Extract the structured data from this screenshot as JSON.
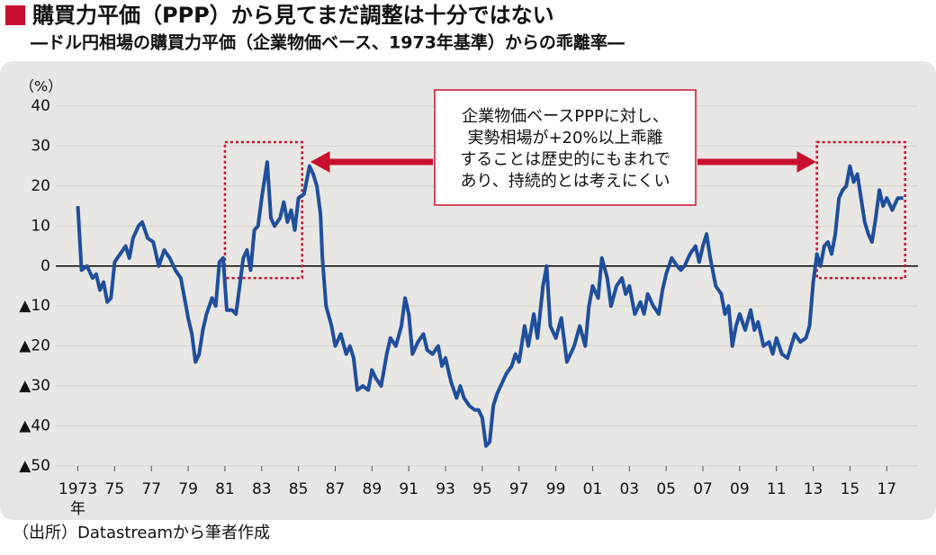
{
  "chart_data": {
    "type": "line",
    "title": "購買力平価（PPP）から見てまだ調整は十分ではない",
    "subtitle": "―ドル円相場の購買力平価（企業物価ベース、1973年基準）からの乖離率―",
    "y_unit": "（%）",
    "x_unit": "年",
    "source": "（出所）Datastreamから筆者作成",
    "annotation": [
      "企業物価ベースPPPに対し、",
      "実勢相場が+20%以上乖離",
      "することは歴史的にもまれで",
      "あり、持続的とは考えにくい"
    ],
    "highlight_ranges": [
      {
        "x": [
          1981,
          1985.2
        ],
        "y": [
          -3,
          31
        ]
      },
      {
        "x": [
          2013.2,
          2018
        ],
        "y": [
          -3,
          31
        ]
      }
    ],
    "highlight_color": "#c8102e",
    "grid": true,
    "xlim": [
      1971.8,
      2018.7
    ],
    "ylim": [
      -50,
      40
    ],
    "yticks": [
      {
        "value": -50,
        "label": "▲50"
      },
      {
        "value": -40,
        "label": "▲40"
      },
      {
        "value": -30,
        "label": "▲30"
      },
      {
        "value": -20,
        "label": "▲20"
      },
      {
        "value": -10,
        "label": "▲10"
      },
      0,
      10,
      20,
      30,
      40
    ],
    "xticks": [
      1973,
      {
        "value": 1975,
        "label": "75"
      },
      {
        "value": 1977,
        "label": "77"
      },
      {
        "value": 1979,
        "label": "79"
      },
      {
        "value": 1981,
        "label": "81"
      },
      {
        "value": 1983,
        "label": "83"
      },
      {
        "value": 1985,
        "label": "85"
      },
      {
        "value": 1987,
        "label": "87"
      },
      {
        "value": 1989,
        "label": "89"
      },
      {
        "value": 1991,
        "label": "91"
      },
      {
        "value": 1993,
        "label": "93"
      },
      {
        "value": 1995,
        "label": "95"
      },
      {
        "value": 1997,
        "label": "97"
      },
      {
        "value": 1999,
        "label": "99"
      },
      {
        "value": 2001,
        "label": "01"
      },
      {
        "value": 2003,
        "label": "03"
      },
      {
        "value": 2005,
        "label": "05"
      },
      {
        "value": 2007,
        "label": "07"
      },
      {
        "value": 2009,
        "label": "09"
      },
      {
        "value": 2011,
        "label": "11"
      },
      {
        "value": 2013,
        "label": "13"
      },
      {
        "value": 2015,
        "label": "15"
      },
      {
        "value": 2017,
        "label": "17"
      }
    ],
    "series": [
      {
        "color": "#1f4e9c",
        "x": [
          1973.0,
          1973.2,
          1973.5,
          1973.8,
          1974.0,
          1974.2,
          1974.4,
          1974.6,
          1974.8,
          1975.0,
          1975.3,
          1975.6,
          1975.8,
          1976.0,
          1976.3,
          1976.5,
          1976.8,
          1977.1,
          1977.4,
          1977.7,
          1978.0,
          1978.3,
          1978.6,
          1978.8,
          1979.0,
          1979.2,
          1979.4,
          1979.6,
          1979.8,
          1980.0,
          1980.3,
          1980.5,
          1980.7,
          1980.9,
          1981.1,
          1981.4,
          1981.6,
          1981.8,
          1982.0,
          1982.2,
          1982.4,
          1982.6,
          1982.8,
          1983.0,
          1983.3,
          1983.5,
          1983.7,
          1984.0,
          1984.2,
          1984.4,
          1984.6,
          1984.8,
          1985.0,
          1985.3,
          1985.6,
          1985.8,
          1986.0,
          1986.2,
          1986.3,
          1986.5,
          1986.8,
          1987.0,
          1987.3,
          1987.6,
          1987.8,
          1988.0,
          1988.2,
          1988.5,
          1988.8,
          1989.0,
          1989.2,
          1989.5,
          1989.8,
          1990.0,
          1990.3,
          1990.6,
          1990.8,
          1991.0,
          1991.2,
          1991.5,
          1991.8,
          1992.0,
          1992.3,
          1992.6,
          1992.8,
          1993.0,
          1993.3,
          1993.6,
          1993.8,
          1994.0,
          1994.3,
          1994.6,
          1994.8,
          1995.0,
          1995.2,
          1995.4,
          1995.6,
          1995.8,
          1996.0,
          1996.3,
          1996.6,
          1996.8,
          1997.0,
          1997.3,
          1997.5,
          1997.8,
          1998.0,
          1998.3,
          1998.5,
          1998.7,
          1999.0,
          1999.3,
          1999.6,
          1999.8,
          2000.0,
          2000.3,
          2000.6,
          2000.8,
          2001.0,
          2001.3,
          2001.5,
          2001.8,
          2002.0,
          2002.3,
          2002.6,
          2002.8,
          2003.0,
          2003.3,
          2003.6,
          2003.8,
          2004.0,
          2004.3,
          2004.6,
          2004.8,
          2005.0,
          2005.3,
          2005.6,
          2005.8,
          2006.0,
          2006.3,
          2006.6,
          2006.8,
          2007.0,
          2007.2,
          2007.4,
          2007.7,
          2008.0,
          2008.2,
          2008.4,
          2008.6,
          2008.8,
          2009.0,
          2009.3,
          2009.6,
          2009.8,
          2010.0,
          2010.3,
          2010.6,
          2010.8,
          2011.0,
          2011.3,
          2011.6,
          2011.8,
          2012.0,
          2012.3,
          2012.6,
          2012.8,
          2013.0,
          2013.2,
          2013.4,
          2013.6,
          2013.8,
          2014.0,
          2014.2,
          2014.4,
          2014.6,
          2014.8,
          2015.0,
          2015.2,
          2015.4,
          2015.6,
          2015.8,
          2016.0,
          2016.2,
          2016.4,
          2016.6,
          2016.8,
          2017.0,
          2017.3,
          2017.6,
          2017.9
        ],
        "values": [
          15,
          -1,
          0,
          -3,
          -2,
          -6,
          -4,
          -9,
          -8,
          1,
          3,
          5,
          2,
          7,
          10,
          11,
          7,
          6,
          0,
          4,
          2,
          -1,
          -3,
          -8,
          -13,
          -17,
          -24,
          -22,
          -16,
          -12,
          -8,
          -10,
          1,
          2,
          -11,
          -11,
          -12,
          -5,
          2,
          4,
          -1,
          9,
          10,
          17,
          26,
          12,
          10,
          12,
          16,
          11,
          14,
          9,
          17,
          18,
          25,
          23,
          20,
          13,
          2,
          -10,
          -15,
          -20,
          -17,
          -22,
          -20,
          -23,
          -31,
          -30,
          -31,
          -26,
          -28,
          -30,
          -22,
          -18,
          -20,
          -15,
          -8,
          -12,
          -22,
          -19,
          -17,
          -21,
          -22,
          -20,
          -25,
          -23,
          -29,
          -33,
          -30,
          -33,
          -35,
          -36,
          -36,
          -38,
          -45,
          -44,
          -35,
          -32,
          -30,
          -27,
          -25,
          -22,
          -24,
          -15,
          -20,
          -12,
          -18,
          -5,
          0,
          -15,
          -18,
          -13,
          -24,
          -22,
          -20,
          -15,
          -20,
          -10,
          -5,
          -8,
          2,
          -3,
          -10,
          -5,
          -3,
          -7,
          -5,
          -12,
          -9,
          -12,
          -7,
          -10,
          -12,
          -6,
          -2,
          2,
          0,
          -1,
          0,
          3,
          5,
          1,
          5,
          8,
          2,
          -5,
          -7,
          -12,
          -10,
          -20,
          -15,
          -12,
          -16,
          -11,
          -16,
          -14,
          -20,
          -19,
          -22,
          -18,
          -22,
          -23,
          -20,
          -17,
          -19,
          -18,
          -15,
          -4,
          3,
          0,
          5,
          6,
          3,
          8,
          17,
          19,
          20,
          25,
          21,
          23,
          17,
          11,
          8,
          6,
          12,
          19,
          15,
          17,
          14,
          17,
          17
        ]
      }
    ]
  }
}
